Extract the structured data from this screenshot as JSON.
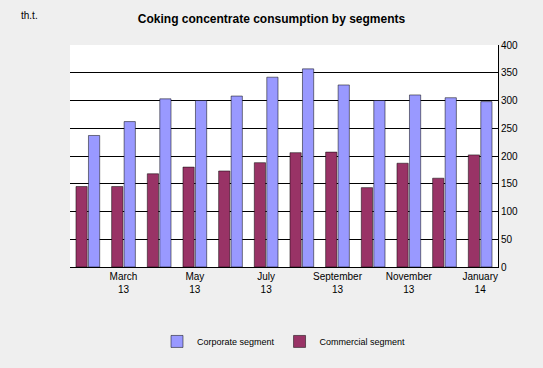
{
  "chart_data": {
    "type": "bar",
    "title": "Coking concentrate consumption by segments",
    "y_label": "th.t.",
    "categories": [
      null,
      "March 13",
      null,
      "May 13",
      null,
      "July 13",
      null,
      "September 13",
      null,
      "November 13",
      null,
      "January 14"
    ],
    "series": [
      {
        "name": "Corporate segment",
        "color": "#9999ff",
        "values": [
          237,
          262,
          303,
          300,
          308,
          342,
          357,
          328,
          300,
          310,
          305,
          298
        ]
      },
      {
        "name": "Commercial segment",
        "color": "#993366",
        "values": [
          145,
          145,
          168,
          180,
          173,
          188,
          206,
          207,
          143,
          187,
          160,
          202
        ]
      }
    ],
    "ylim": [
      0,
      400
    ],
    "yticks": [
      0,
      50,
      100,
      150,
      200,
      250,
      300,
      350,
      400
    ],
    "grid": true,
    "legend": "bottom"
  }
}
